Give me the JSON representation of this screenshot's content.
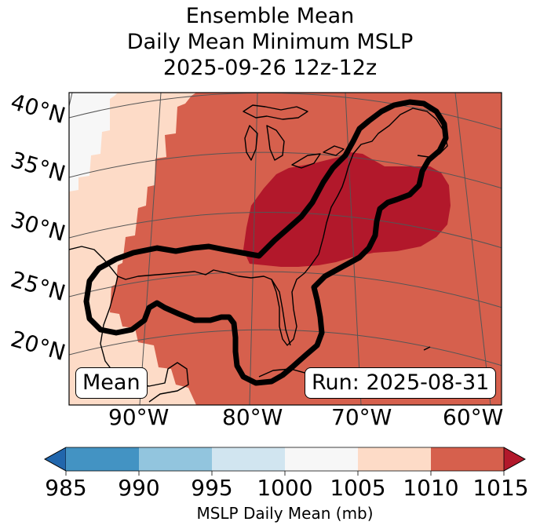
{
  "title": {
    "line1": "Ensemble Mean",
    "line2": "Daily Mean Minimum MSLP",
    "line3": "2025-09-26 12z-12z"
  },
  "map": {
    "lat_labels": [
      "40°N",
      "35°N",
      "30°N",
      "25°N",
      "20°N"
    ],
    "lon_labels": [
      "90°W",
      "80°W",
      "70°W",
      "60°W"
    ],
    "mean_badge": "Mean",
    "run_badge": "Run: 2025-08-31",
    "colors": {
      "band_1000_1005": "#f7f7f7",
      "band_1005_1010": "#fddbc7",
      "band_1010_1015": "#d6604d",
      "band_above_1015": "#b2182b",
      "contour": "#000000",
      "coast": "#000000",
      "grid": "#555555"
    }
  },
  "colorbar": {
    "label": "MSLP Daily Mean (mb)",
    "ticks": [
      "985",
      "990",
      "995",
      "1000",
      "1005",
      "1010",
      "1015"
    ],
    "colors": [
      "#2166ac",
      "#4393c3",
      "#92c5de",
      "#d1e5f0",
      "#f7f7f7",
      "#fddbc7",
      "#d6604d",
      "#b2182b"
    ]
  }
}
